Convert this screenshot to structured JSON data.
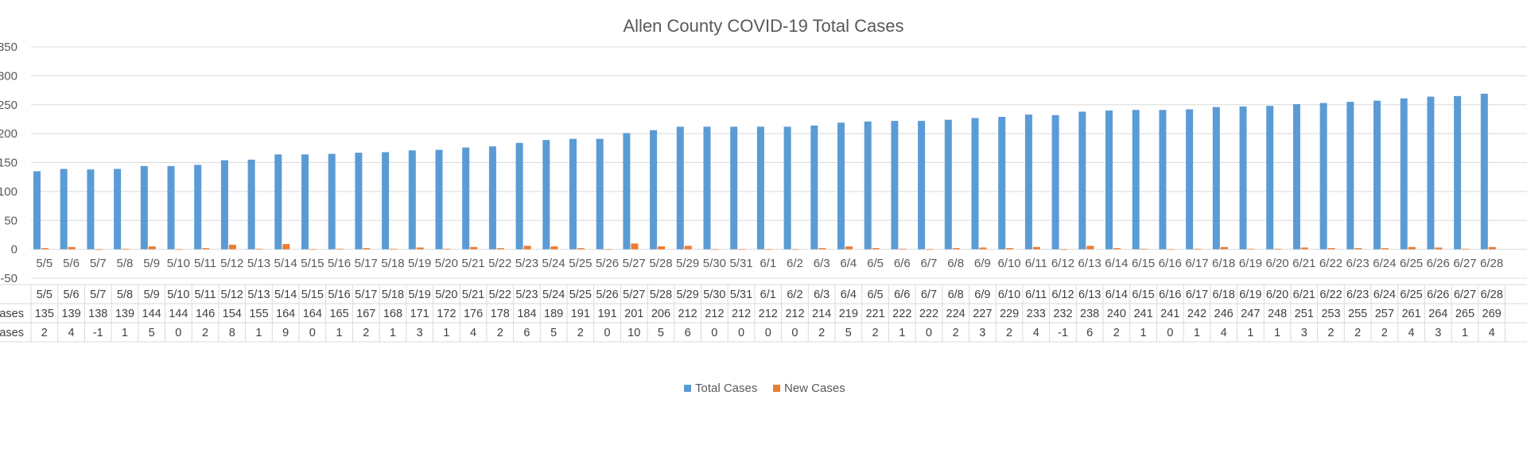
{
  "chart_data": {
    "type": "bar",
    "title": "Allen County COVID-19 Total Cases",
    "categories": [
      "5/5",
      "5/6",
      "5/7",
      "5/8",
      "5/9",
      "5/10",
      "5/11",
      "5/12",
      "5/13",
      "5/14",
      "5/15",
      "5/16",
      "5/17",
      "5/18",
      "5/19",
      "5/20",
      "5/21",
      "5/22",
      "5/23",
      "5/24",
      "5/25",
      "5/26",
      "5/27",
      "5/28",
      "5/29",
      "5/30",
      "5/31",
      "6/1",
      "6/2",
      "6/3",
      "6/4",
      "6/5",
      "6/6",
      "6/7",
      "6/8",
      "6/9",
      "6/10",
      "6/11",
      "6/12",
      "6/13",
      "6/14",
      "6/15",
      "6/16",
      "6/17",
      "6/18",
      "6/19",
      "6/20",
      "6/21",
      "6/22",
      "6/23",
      "6/24",
      "6/25",
      "6/26",
      "6/27",
      "6/28"
    ],
    "series": [
      {
        "name": "Total Cases",
        "color": "#5B9BD5",
        "values": [
          135,
          139,
          138,
          139,
          144,
          144,
          146,
          154,
          155,
          164,
          164,
          165,
          167,
          168,
          171,
          172,
          176,
          178,
          184,
          189,
          191,
          191,
          201,
          206,
          212,
          212,
          212,
          212,
          212,
          214,
          219,
          221,
          222,
          222,
          224,
          227,
          229,
          233,
          232,
          238,
          240,
          241,
          241,
          242,
          246,
          247,
          248,
          251,
          253,
          255,
          257,
          261,
          264,
          265,
          269
        ]
      },
      {
        "name": "New Cases",
        "color": "#ED7D31",
        "values": [
          2,
          4,
          -1,
          1,
          5,
          0,
          2,
          8,
          1,
          9,
          0,
          1,
          2,
          1,
          3,
          1,
          4,
          2,
          6,
          5,
          2,
          0,
          10,
          5,
          6,
          0,
          0,
          0,
          0,
          2,
          5,
          2,
          1,
          0,
          2,
          3,
          2,
          4,
          -1,
          6,
          2,
          1,
          0,
          1,
          4,
          1,
          1,
          3,
          2,
          2,
          2,
          4,
          3,
          1,
          4
        ]
      }
    ],
    "row_labels": [
      "Cases",
      "Cases"
    ],
    "yticks": [
      "350",
      "300",
      "250",
      "200",
      "150",
      "100",
      "50",
      "0",
      "-50"
    ],
    "ylim": [
      -50,
      350
    ],
    "grid": true,
    "legend": "bottom"
  }
}
